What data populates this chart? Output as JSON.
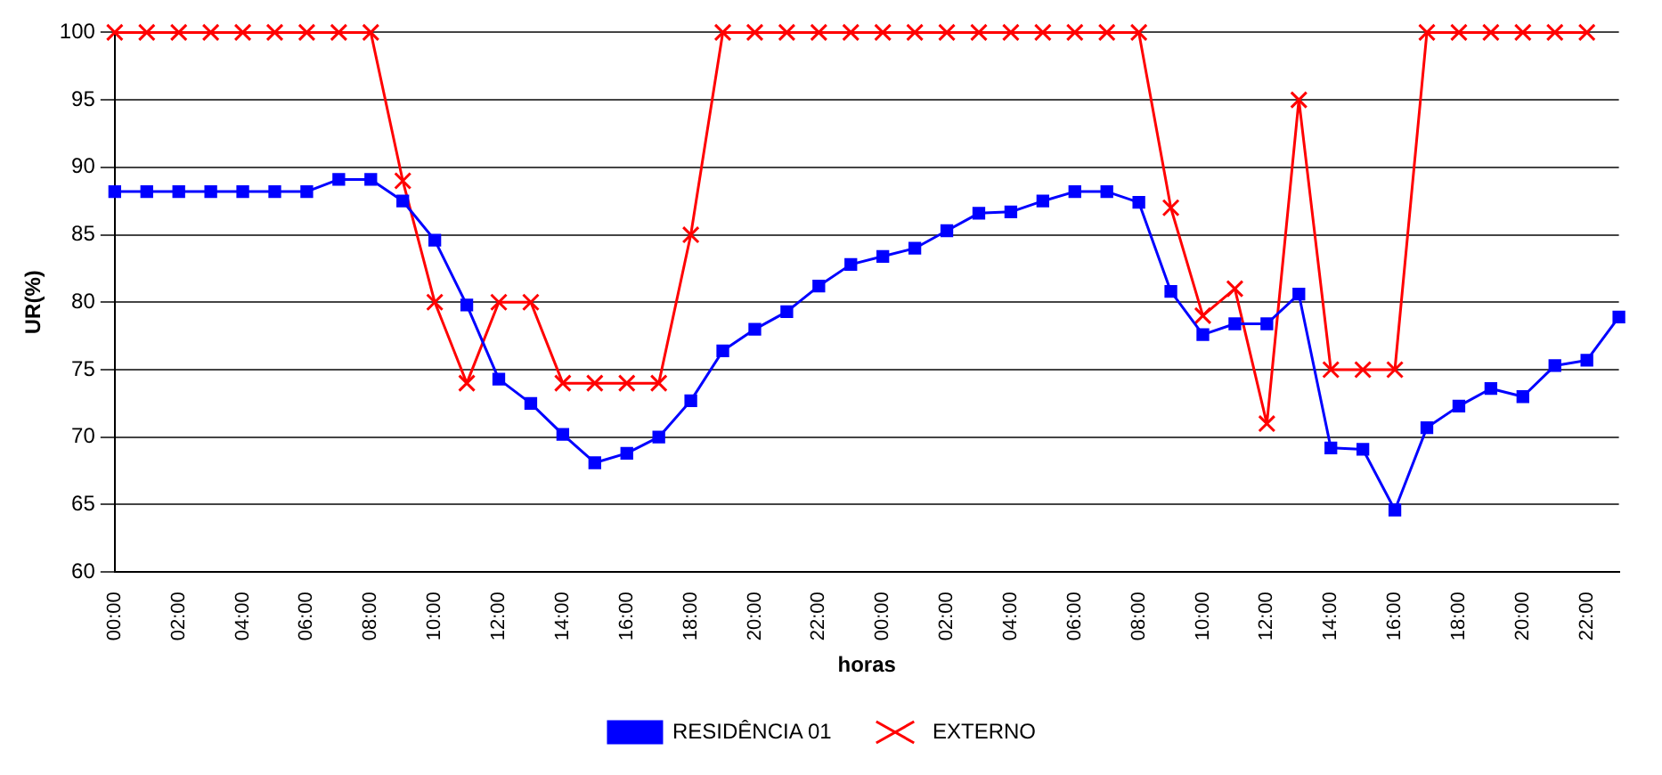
{
  "chart_data": {
    "type": "line",
    "xlabel": "horas",
    "ylabel": "UR(%)",
    "categories": [
      "00:00",
      null,
      "02:00",
      null,
      "04:00",
      null,
      "06:00",
      null,
      "08:00",
      null,
      "10:00",
      null,
      "12:00",
      null,
      "14:00",
      null,
      "16:00",
      null,
      "18:00",
      null,
      "20:00",
      null,
      "22:00",
      null,
      "00:00",
      null,
      "02:00",
      null,
      "04:00",
      null,
      "06:00",
      null,
      "08:00",
      null,
      "10:00",
      null,
      "12:00",
      null,
      "14:00",
      null,
      "16:00",
      null,
      "18:00",
      null,
      "20:00",
      null,
      "22:00",
      null
    ],
    "series": [
      {
        "name": "RESIDÊNCIA 01",
        "color": "#0000ff",
        "marker": "square",
        "values": [
          88.2,
          88.2,
          88.2,
          88.2,
          88.2,
          88.2,
          88.2,
          89.1,
          89.1,
          87.5,
          84.6,
          79.8,
          74.3,
          72.5,
          70.2,
          68.1,
          68.8,
          70.0,
          72.7,
          76.4,
          78.0,
          79.3,
          81.2,
          82.8,
          83.4,
          84.0,
          85.3,
          86.6,
          86.7,
          87.5,
          88.2,
          88.2,
          87.4,
          80.8,
          77.6,
          78.4,
          78.4,
          80.6,
          69.2,
          69.1,
          64.6,
          70.7,
          72.3,
          73.6,
          73.0,
          75.3,
          75.7,
          78.9
        ]
      },
      {
        "name": "EXTERNO",
        "color": "#ff0000",
        "marker": "cross",
        "values": [
          100,
          100,
          100,
          100,
          100,
          100,
          100,
          100,
          100,
          89,
          80,
          74,
          80,
          80,
          74,
          74,
          74,
          74,
          85,
          100,
          100,
          100,
          100,
          100,
          100,
          100,
          100,
          100,
          100,
          100,
          100,
          100,
          100,
          87,
          79,
          81,
          71,
          95,
          75,
          75,
          75,
          100,
          100,
          100,
          100,
          100,
          100,
          null
        ]
      }
    ],
    "ylim": [
      60,
      100
    ],
    "yticks": [
      60,
      65,
      70,
      75,
      80,
      85,
      90,
      95,
      100
    ],
    "grid": "y",
    "legend": "bottom",
    "line_style": "solid"
  }
}
